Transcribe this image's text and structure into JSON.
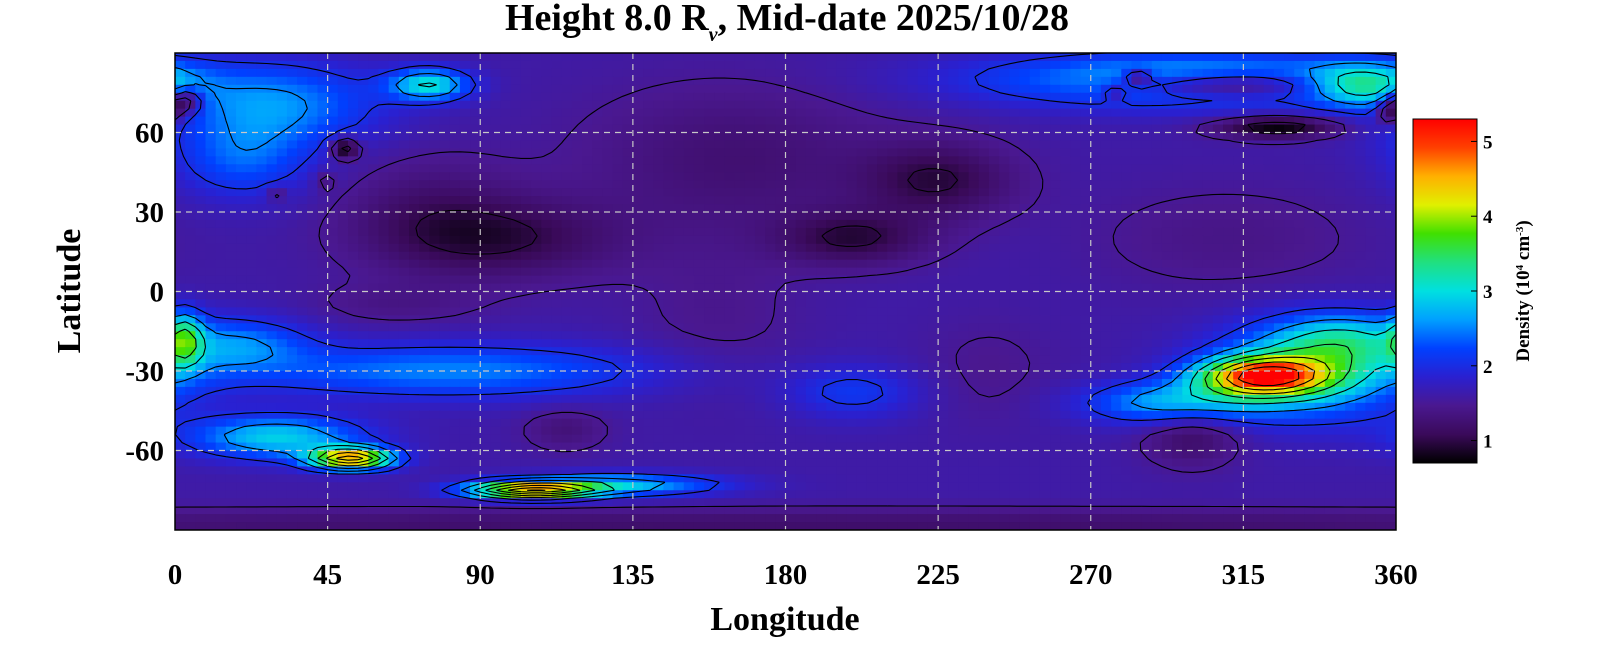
{
  "chart_data": {
    "type": "heatmap",
    "title_main": "Height 8.0 R",
    "title_sub": "v",
    "title_rest": ", Mid-date 2025/10/28",
    "xlabel": "Longitude",
    "ylabel": "Latitude",
    "xlim": [
      0,
      360
    ],
    "ylim": [
      -90,
      90
    ],
    "x_ticks": [
      "0",
      "45",
      "90",
      "135",
      "180",
      "225",
      "270",
      "315",
      "360"
    ],
    "y_ticks": [
      "60",
      "30",
      "0",
      "-30",
      "-60"
    ],
    "y_tick_values": [
      60,
      30,
      0,
      -30,
      -60
    ],
    "x_tick_values": [
      0,
      45,
      90,
      135,
      180,
      225,
      270,
      315,
      360
    ],
    "grid": true,
    "colorbar": {
      "label_pre": "Density (10",
      "label_exp1": "4",
      "label_mid": " cm",
      "label_exp2": "-3",
      "label_post": ")",
      "range": [
        0.7,
        5.3
      ],
      "ticks": [
        "1",
        "2",
        "3",
        "4",
        "5"
      ],
      "tick_values": [
        1,
        2,
        3,
        4,
        5
      ],
      "colors": [
        "#000000",
        "#3a0a5a",
        "#4a1890",
        "#2a20d0",
        "#0040ff",
        "#00a0ff",
        "#00e0e0",
        "#20e080",
        "#40e000",
        "#e0f000",
        "#ffb000",
        "#ff4000",
        "#ff0000"
      ]
    },
    "background_density": 1.6,
    "features": [
      {
        "lon": 95,
        "lat": 20,
        "dlon": 35,
        "dlat": 15,
        "amp": -0.6
      },
      {
        "lon": 75,
        "lat": 32,
        "dlon": 25,
        "dlat": 20,
        "amp": -0.3
      },
      {
        "lon": 200,
        "lat": 20,
        "dlon": 22,
        "dlat": 10,
        "amp": -0.6
      },
      {
        "lon": 225,
        "lat": 42,
        "dlon": 22,
        "dlat": 14,
        "amp": -0.6
      },
      {
        "lon": 165,
        "lat": 50,
        "dlon": 45,
        "dlat": 28,
        "amp": -0.35
      },
      {
        "lon": 310,
        "lat": 20,
        "dlon": 40,
        "dlat": 20,
        "amp": -0.2
      },
      {
        "lon": 160,
        "lat": -10,
        "dlon": 25,
        "dlat": 30,
        "amp": -0.15
      },
      {
        "lon": 240,
        "lat": -30,
        "dlon": 20,
        "dlat": 20,
        "amp": -0.15
      },
      {
        "lon": 310,
        "lat": 78,
        "dlon": 30,
        "dlat": 5,
        "amp": -1.2
      },
      {
        "lon": 325,
        "lat": 62,
        "dlon": 18,
        "dlat": 4,
        "amp": -0.9
      },
      {
        "lon": 3,
        "lat": 72,
        "dlon": 5,
        "dlat": 5,
        "amp": -1.2
      },
      {
        "lon": 50,
        "lat": 54,
        "dlon": 4,
        "dlat": 4,
        "amp": -1.0
      },
      {
        "lon": 284,
        "lat": 81,
        "dlon": 4,
        "dlat": 3,
        "amp": -0.9
      },
      {
        "lon": 277,
        "lat": 75,
        "dlon": 3,
        "dlat": 3,
        "amp": -0.5
      },
      {
        "lon": 358,
        "lat": 68,
        "dlon": 4,
        "dlat": 5,
        "amp": -0.9
      },
      {
        "lon": 30,
        "lat": 37,
        "dlon": 3,
        "dlat": 3,
        "amp": -0.4
      },
      {
        "lon": 44,
        "lat": 42,
        "dlon": 3,
        "dlat": 4,
        "amp": -0.3
      },
      {
        "lon": 300,
        "lat": -53,
        "dlon": 14,
        "dlat": 12,
        "amp": -0.5
      },
      {
        "lon": 115,
        "lat": -52,
        "dlon": 12,
        "dlat": 8,
        "amp": -0.3
      },
      {
        "lon": 65,
        "lat": -5,
        "dlon": 25,
        "dlat": 8,
        "amp": -0.2
      },
      {
        "lon": 320,
        "lat": -32,
        "dlon": 18,
        "dlat": 7,
        "amp": 2.8
      },
      {
        "lon": 335,
        "lat": -30,
        "dlon": 28,
        "dlat": 17,
        "amp": 1.5
      },
      {
        "lon": 295,
        "lat": -42,
        "dlon": 25,
        "dlat": 8,
        "amp": 1.2
      },
      {
        "lon": 345,
        "lat": -18,
        "dlon": 20,
        "dlat": 10,
        "amp": 0.9
      },
      {
        "lon": 52,
        "lat": -63,
        "dlon": 12,
        "dlat": 4,
        "amp": 3.0
      },
      {
        "lon": 30,
        "lat": -55,
        "dlon": 25,
        "dlat": 8,
        "amp": 1.3
      },
      {
        "lon": 105,
        "lat": -75,
        "dlon": 18,
        "dlat": 3,
        "amp": 3.0
      },
      {
        "lon": 130,
        "lat": -73,
        "dlon": 30,
        "dlat": 4,
        "amp": 1.2
      },
      {
        "lon": 80,
        "lat": -30,
        "dlon": 60,
        "dlat": 10,
        "amp": 0.9
      },
      {
        "lon": 20,
        "lat": -20,
        "dlon": 20,
        "dlat": 10,
        "amp": 0.8
      },
      {
        "lon": 200,
        "lat": -38,
        "dlon": 20,
        "dlat": 10,
        "amp": 0.5
      },
      {
        "lon": 75,
        "lat": 78,
        "dlon": 12,
        "dlat": 6,
        "amp": 1.4
      },
      {
        "lon": 30,
        "lat": 70,
        "dlon": 30,
        "dlat": 15,
        "amp": 0.9
      },
      {
        "lon": 300,
        "lat": 80,
        "dlon": 60,
        "dlat": 10,
        "amp": 1.3
      },
      {
        "lon": 350,
        "lat": 78,
        "dlon": 15,
        "dlat": 8,
        "amp": 1.2
      },
      {
        "lon": 20,
        "lat": 50,
        "dlon": 20,
        "dlat": 15,
        "amp": 0.7
      },
      {
        "lon": 3,
        "lat": -18,
        "dlon": 5,
        "dlat": 10,
        "amp": 1.2
      },
      {
        "lon": 180,
        "lat": -88,
        "dlon": 400,
        "dlat": 6,
        "amp": -0.4
      }
    ]
  }
}
